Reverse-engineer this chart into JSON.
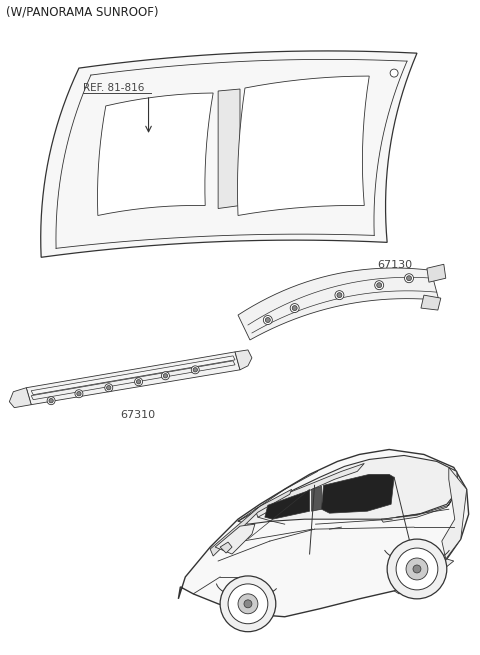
{
  "title": "(W/PANORAMA SUNROOF)",
  "title_fontsize": 8.5,
  "title_color": "#222222",
  "bg_color": "#ffffff",
  "line_color": "#333333",
  "label_color": "#444444",
  "ref_label": "REF. 81-816",
  "part1_label": "67130",
  "part2_label": "67310",
  "fig_width": 4.8,
  "fig_height": 6.55,
  "dpi": 100
}
